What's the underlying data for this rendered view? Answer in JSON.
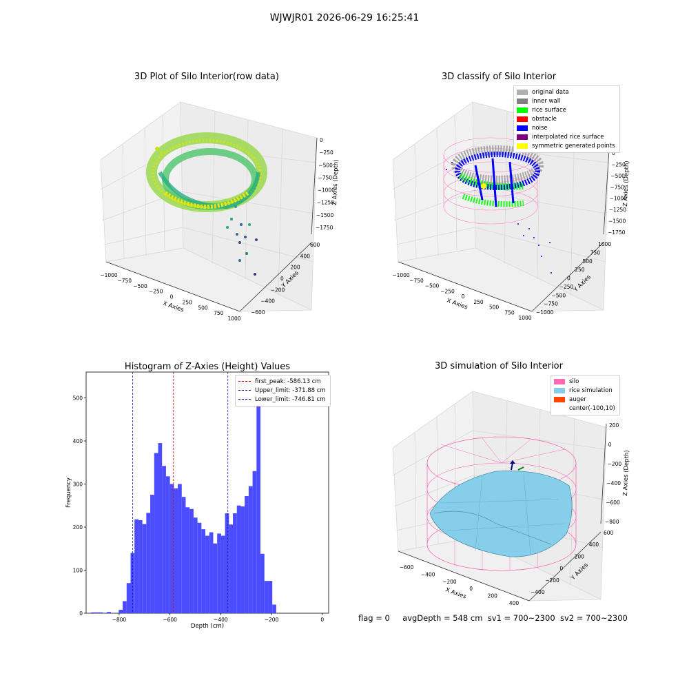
{
  "figure": {
    "title": "WJWJR01 2026-06-29 16:25:41",
    "footer": {
      "flag": "flag = 0",
      "avg_depth": "avgDepth = 548 cm",
      "sv1": "sv1 = 700~2300",
      "sv2": "sv2 = 700~2300"
    }
  },
  "chart_data": [
    {
      "type": "scatter",
      "projection": "3d",
      "title": "3D Plot of Silo Interior(row data)",
      "xlabel": "X Axies",
      "ylabel": "Y Axies",
      "zlabel": "Z Axies (Depth)",
      "x_ticks": [
        "−1000",
        "−750",
        "−500",
        "−250",
        "0",
        "250",
        "500",
        "750",
        "1000"
      ],
      "y_ticks": [
        "−600",
        "−400",
        "−200",
        "0",
        "200",
        "400",
        "600"
      ],
      "z_ticks": [
        "0",
        "−250",
        "−500",
        "−750",
        "−1000",
        "−1250",
        "−1500",
        "−1750"
      ],
      "colormap": "viridis"
    },
    {
      "type": "scatter",
      "projection": "3d",
      "title": "3D classify of Silo Interior",
      "xlabel": "X Axies",
      "ylabel": "Y Axies",
      "zlabel": "Z Axies (Depth)",
      "x_ticks": [
        "−1000",
        "−750",
        "−500",
        "−250",
        "0",
        "250",
        "500",
        "750",
        "1000"
      ],
      "y_ticks": [
        "−1000",
        "−750",
        "−500",
        "−250",
        "0",
        "250",
        "500",
        "750",
        "1000"
      ],
      "z_ticks": [
        "0",
        "−250",
        "−500",
        "−750",
        "−1000",
        "−1250",
        "−1500",
        "−1750"
      ],
      "legend": [
        {
          "label": "original data",
          "color": "#b0b0b0"
        },
        {
          "label": "inner wall",
          "color": "#808080"
        },
        {
          "label": "rice surface",
          "color": "#00ff00"
        },
        {
          "label": "obstacle",
          "color": "#ff0000"
        },
        {
          "label": "noise",
          "color": "#0000ff"
        },
        {
          "label": "interpolated rice surface",
          "color": "#800080"
        },
        {
          "label": "symmetric generated points",
          "color": "#ffff00"
        }
      ]
    },
    {
      "type": "bar",
      "title": "Histogram of Z-Axies (Height) Values",
      "xlabel": "Depth (cm)",
      "ylabel": "Frequency",
      "xlim": [
        -930,
        25
      ],
      "ylim": [
        0,
        560
      ],
      "x_ticks": [
        -800,
        -600,
        -400,
        -200,
        0
      ],
      "x_tick_labels": [
        "−800",
        "−600",
        "−400",
        "−200",
        "0"
      ],
      "y_ticks": [
        0,
        100,
        200,
        300,
        400,
        500
      ],
      "bin_start": -910,
      "bin_width": 15.5,
      "values": [
        2,
        2,
        2,
        1,
        3,
        1,
        1,
        8,
        28,
        70,
        140,
        218,
        216,
        207,
        233,
        275,
        372,
        395,
        342,
        318,
        300,
        290,
        300,
        270,
        246,
        242,
        222,
        210,
        195,
        180,
        188,
        162,
        185,
        180,
        232,
        206,
        232,
        250,
        248,
        272,
        295,
        330,
        530,
        138,
        75,
        75,
        20
      ],
      "bar_color": "#4c4cff",
      "vlines": [
        {
          "x": -586.13,
          "color": "#cc0000",
          "label": "first_peak: -586.13 cm"
        },
        {
          "x": -371.88,
          "color": "#1414b4",
          "label": "Upper_limit: -371.88 cm"
        },
        {
          "x": -746.81,
          "color": "#1414b4",
          "label": "Lower_limit: -746.81 cm"
        }
      ],
      "legend_position": "top-right"
    },
    {
      "type": "surface",
      "projection": "3d",
      "title": "3D simulation of Silo Interior",
      "xlabel": "X Axies",
      "ylabel": "Y Axies",
      "zlabel": "Z Axies (Depth)",
      "x_ticks": [
        "−600",
        "−400",
        "−200",
        "0",
        "200",
        "400"
      ],
      "y_ticks": [
        "−400",
        "−200",
        "0",
        "200",
        "400",
        "600"
      ],
      "z_ticks": [
        "200",
        "0",
        "−200",
        "−400",
        "−600",
        "−800"
      ],
      "legend": [
        {
          "label": "silo",
          "color": "#ff69b4"
        },
        {
          "label": "rice simulation",
          "color": "#87ceeb"
        },
        {
          "label": "auger",
          "color": "#ff4500"
        },
        {
          "label": "center(-100,10)",
          "color": ""
        }
      ]
    }
  ]
}
